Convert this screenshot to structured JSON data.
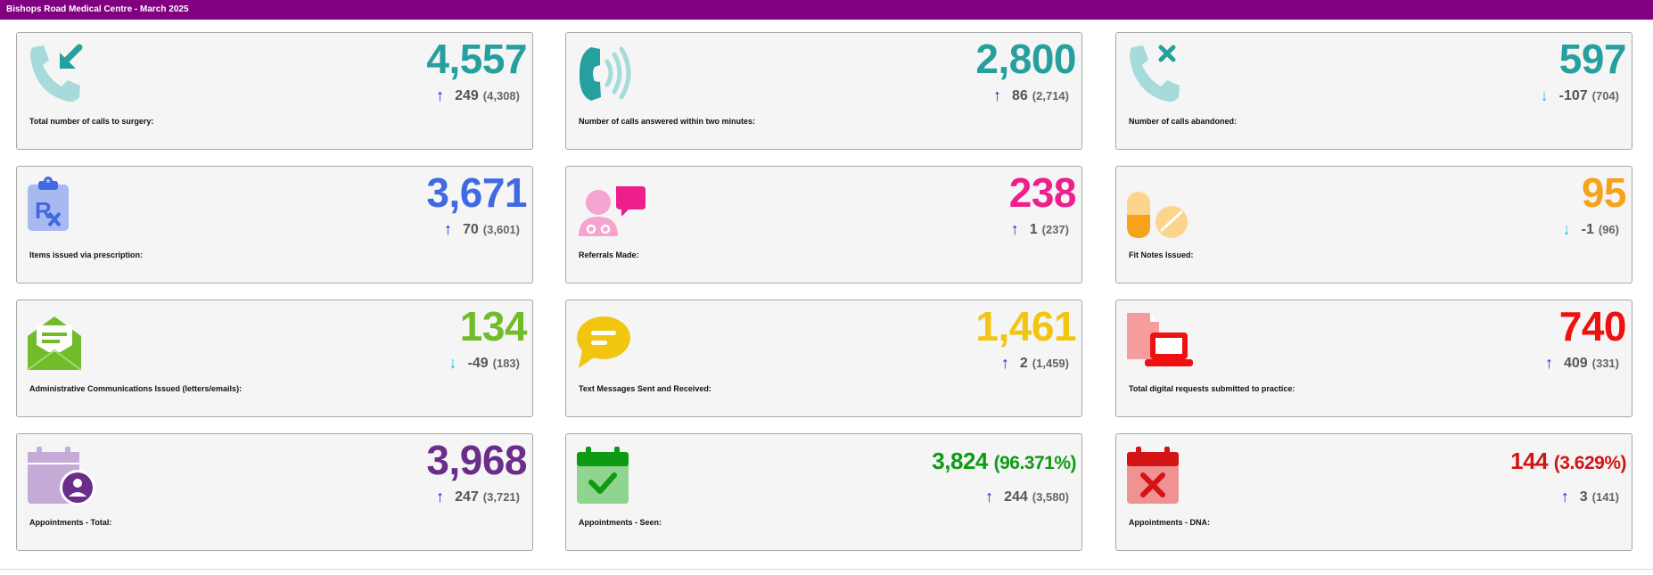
{
  "header": {
    "title": "Bishops Road Medical Centre - March 2025"
  },
  "cards": [
    {
      "label": "Total number of calls to surgery:",
      "value": "4,557",
      "arrow": "↑",
      "change": "249",
      "prev": "(4,308)",
      "color": "#26a09e",
      "arrow_color": "#0a2bdb",
      "icon": "phone-incoming-icon"
    },
    {
      "label": "Number of calls answered within two minutes:",
      "value": "2,800",
      "arrow": "↑",
      "change": "86",
      "prev": "(2,714)",
      "color": "#26a09e",
      "arrow_color": "#0a2bdb",
      "icon": "phone-ringing-icon"
    },
    {
      "label": "Number of calls abandoned:",
      "value": "597",
      "arrow": "↓",
      "change": "-107",
      "prev": "(704)",
      "color": "#26a09e",
      "arrow_color": "#18c0e8",
      "icon": "phone-missed-icon"
    },
    {
      "label": "Items issued via prescription:",
      "value": "3,671",
      "arrow": "↑",
      "change": "70",
      "prev": "(3,601)",
      "color": "#4169e1",
      "arrow_color": "#0a2bdb",
      "icon": "prescription-icon"
    },
    {
      "label": "Referrals Made:",
      "value": "238",
      "arrow": "↑",
      "change": "1",
      "prev": "(237)",
      "color": "#ee1e8c",
      "arrow_color": "#0a2bdb",
      "icon": "doctor-chat-icon"
    },
    {
      "label": "Fit Notes Issued:",
      "value": "95",
      "arrow": "↓",
      "change": "-1",
      "prev": "(96)",
      "color": "#f7a21b",
      "arrow_color": "#18c0e8",
      "icon": "pills-icon"
    },
    {
      "label": "Administrative Communications Issued (letters/emails):",
      "value": "134",
      "arrow": "↓",
      "change": "-49",
      "prev": "(183)",
      "color": "#72bc2a",
      "arrow_color": "#18c0e8",
      "icon": "open-envelope-icon"
    },
    {
      "label": "Text Messages Sent and Received:",
      "value": "1,461",
      "arrow": "↑",
      "change": "2",
      "prev": "(1,459)",
      "color": "#f2c511",
      "arrow_color": "#0a2bdb",
      "icon": "chat-bubble-icon"
    },
    {
      "label": "Total digital requests submitted to practice:",
      "value": "740",
      "arrow": "↑",
      "change": "409",
      "prev": "(331)",
      "color": "#ee1111",
      "arrow_color": "#0a2bdb",
      "icon": "laptop-document-icon"
    },
    {
      "label": "Appointments - Total:",
      "value": "3,968",
      "pct": "",
      "arrow": "↑",
      "change": "247",
      "prev": "(3,721)",
      "color": "#6a2d8a",
      "arrow_color": "#0a2bdb",
      "icon": "calendar-person-icon"
    },
    {
      "label": "Appointments - Seen:",
      "value": "3,824",
      "pct": "(96.371%)",
      "arrow": "↑",
      "change": "244",
      "prev": "(3,580)",
      "color": "#0e9b14",
      "arrow_color": "#0a2bdb",
      "icon": "calendar-check-icon"
    },
    {
      "label": "Appointments - DNA:",
      "value": "144",
      "pct": "(3.629%)",
      "arrow": "↑",
      "change": "3",
      "prev": "(141)",
      "color": "#d31414",
      "arrow_color": "#0a2bdb",
      "icon": "calendar-x-icon"
    }
  ]
}
